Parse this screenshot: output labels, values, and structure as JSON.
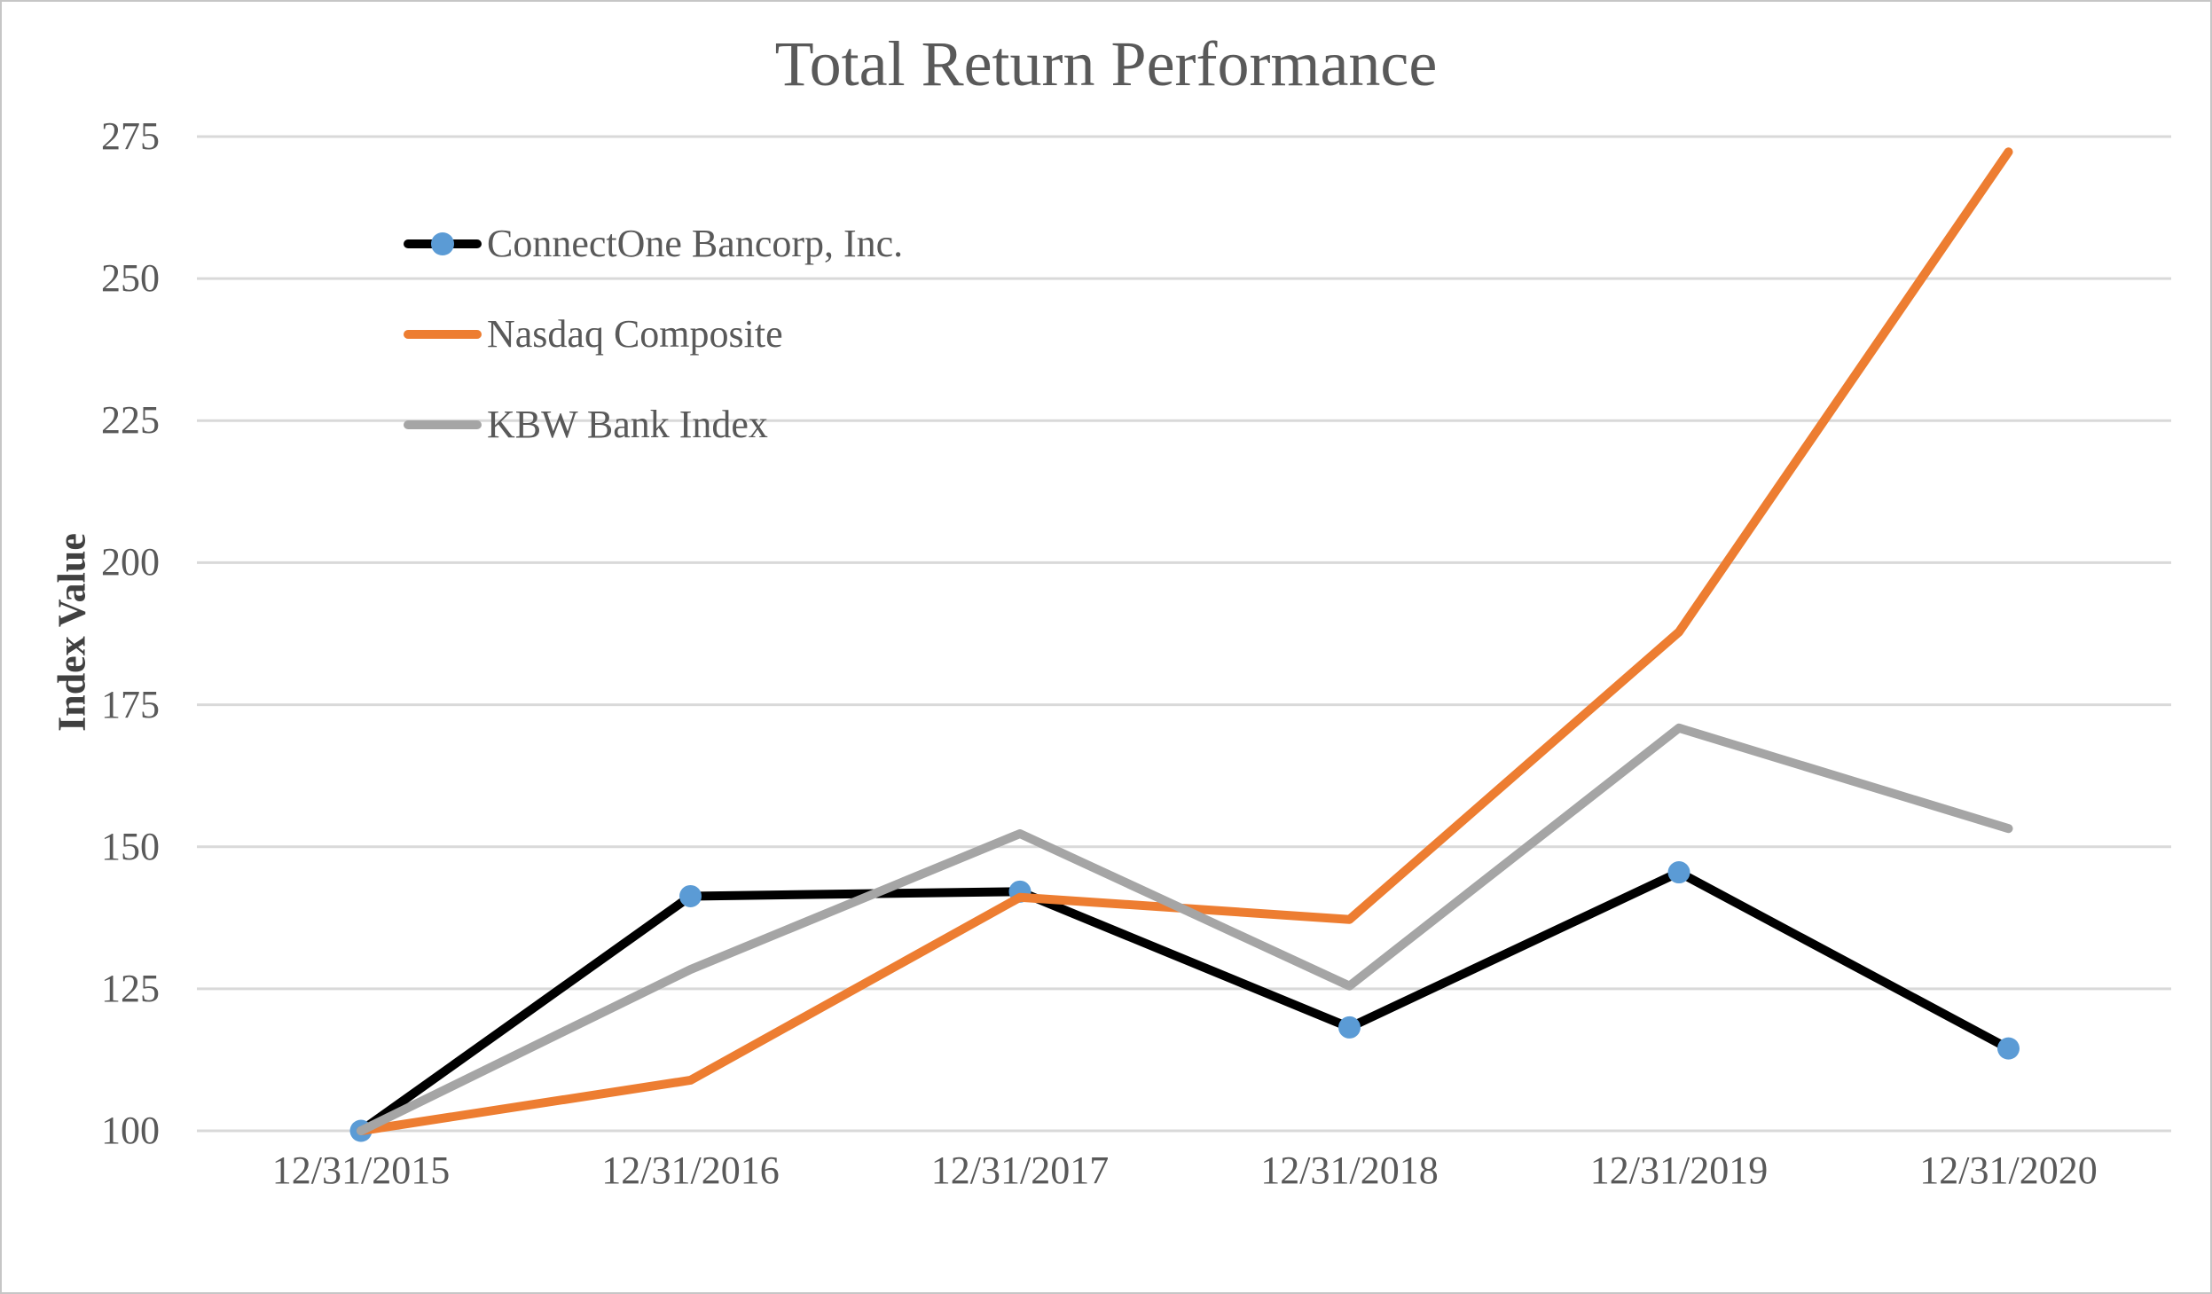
{
  "page": {
    "background": "#ffffff",
    "border_color": "#c6c6c6"
  },
  "chart_data": {
    "type": "line",
    "title": "Total Return Performance",
    "xlabel": "",
    "ylabel": "Index Value",
    "categories": [
      "12/31/2015",
      "12/31/2016",
      "12/31/2017",
      "12/31/2018",
      "12/31/2019",
      "12/31/2020"
    ],
    "yticks": [
      100,
      125,
      150,
      175,
      200,
      225,
      250,
      275
    ],
    "ylim": [
      100,
      275
    ],
    "grid": "horizontal-only",
    "gridline_color": "#d9d9d9",
    "tick_text_color": "#595959",
    "axis_title_color": "#404040",
    "legend_position": "inside-top-left",
    "series": [
      {
        "name": "ConnectOne Bancorp, Inc.",
        "color": "#000000",
        "marker": {
          "shape": "circle",
          "color": "#5b9bd5"
        },
        "values": [
          100,
          141.3,
          142.1,
          118.2,
          145.5,
          114.5
        ]
      },
      {
        "name": "Nasdaq Composite",
        "color": "#ed7d31",
        "marker": null,
        "values": [
          100,
          108.9,
          141.1,
          137.2,
          187.8,
          272.3
        ]
      },
      {
        "name": "KBW Bank Index",
        "color": "#a5a5a5",
        "marker": null,
        "values": [
          100,
          128.4,
          152.3,
          125.5,
          170.9,
          153.2
        ]
      }
    ]
  }
}
